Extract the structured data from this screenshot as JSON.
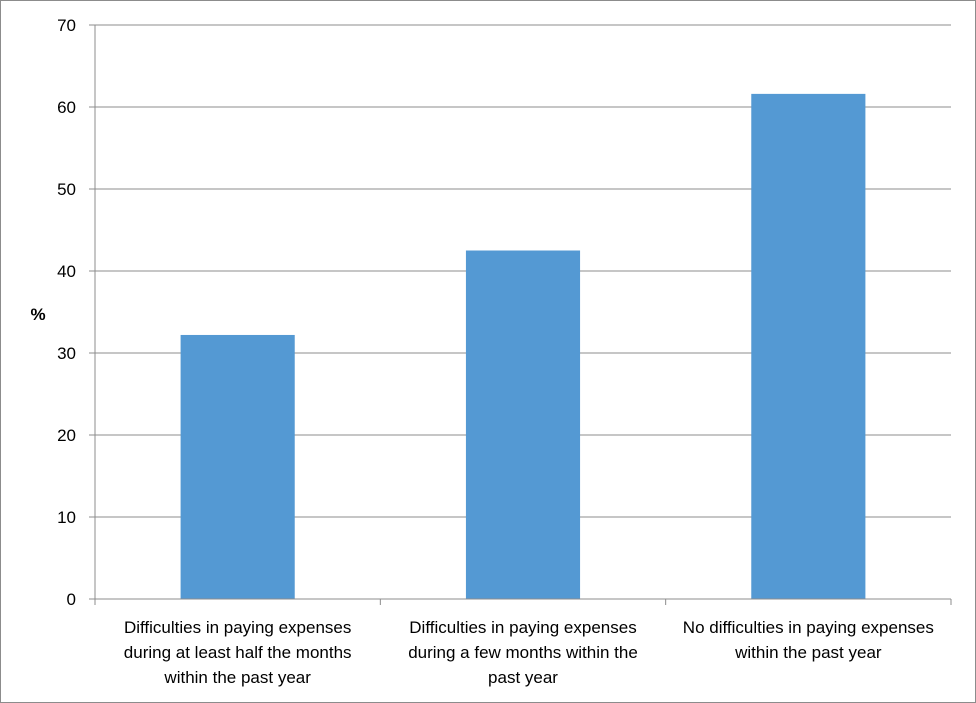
{
  "chart_data": {
    "type": "bar",
    "categories": [
      [
        "Difficulties in paying expenses",
        "during at least half the months",
        "within the past year"
      ],
      [
        "Difficulties in paying expenses",
        "during a few months within the",
        "past year"
      ],
      [
        "No difficulties in paying expenses",
        "within the past year"
      ]
    ],
    "values": [
      32.2,
      42.5,
      61.6
    ],
    "title": "",
    "xlabel": "",
    "ylabel": "%",
    "ylim": [
      0,
      70
    ],
    "yticks": [
      0,
      10,
      20,
      30,
      40,
      50,
      60,
      70
    ],
    "grid": true,
    "legend": "none",
    "colors": {
      "bar": "#5499d3",
      "grid": "#8c8c8c",
      "axis": "#8c8c8c"
    }
  }
}
